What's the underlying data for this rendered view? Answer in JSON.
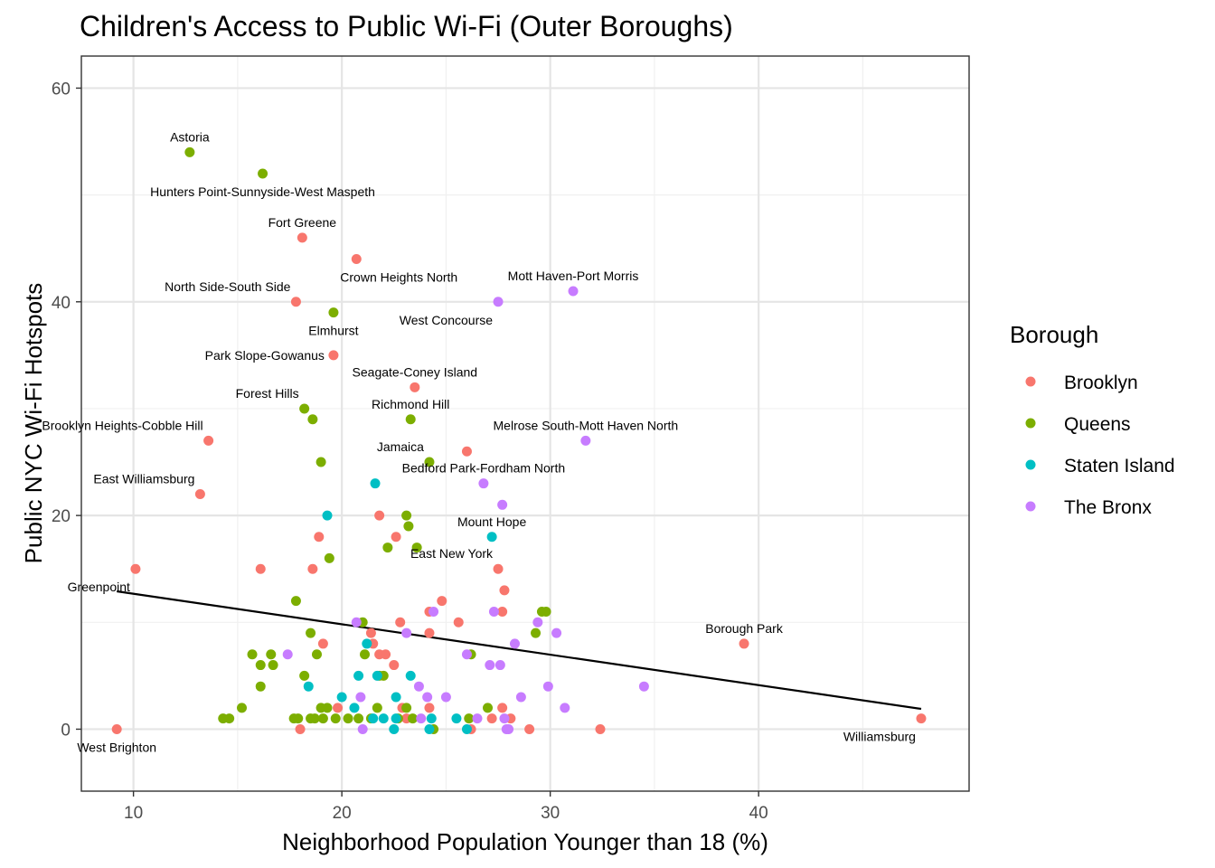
{
  "chart_data": {
    "type": "scatter",
    "title": "Children's Access to Public Wi-Fi (Outer Boroughs)",
    "xlabel": "Neighborhood Population Younger than 18 (%)",
    "ylabel": "Public NYC Wi-Fi Hotspots",
    "xlim": [
      7.5,
      50.1
    ],
    "ylim": [
      -5.8,
      63
    ],
    "x_ticks": [
      10,
      20,
      30,
      40
    ],
    "y_ticks": [
      0,
      20,
      40,
      60
    ],
    "grid": true,
    "legend": {
      "title": "Borough",
      "position": "right",
      "entries": [
        {
          "name": "Brooklyn",
          "color": "#F8766D"
        },
        {
          "name": "Queens",
          "color": "#7CAE00"
        },
        {
          "name": "Staten Island",
          "color": "#00BFC4"
        },
        {
          "name": "The Bronx",
          "color": "#C77CFF"
        }
      ]
    },
    "trend_line": {
      "x": [
        9.2,
        47.8
      ],
      "y": [
        12.9,
        1.9
      ]
    },
    "labeled_points": [
      {
        "label": "Astoria",
        "x": 12.7,
        "y": 54,
        "borough": "Queens",
        "label_pos": "above"
      },
      {
        "label": "Hunters Point-Sunnyside-West Maspeth",
        "x": 16.2,
        "y": 52,
        "borough": "Queens",
        "label_pos": "below"
      },
      {
        "label": "Fort Greene",
        "x": 18.1,
        "y": 46,
        "borough": "Brooklyn",
        "label_pos": "above"
      },
      {
        "label": "Crown Heights North",
        "x": 20.7,
        "y": 44,
        "borough": "Brooklyn",
        "label_pos": "below-right"
      },
      {
        "label": "North Side-South Side",
        "x": 17.8,
        "y": 40,
        "borough": "Brooklyn",
        "label_pos": "above-left"
      },
      {
        "label": "Elmhurst",
        "x": 19.6,
        "y": 39,
        "borough": "Queens",
        "label_pos": "below"
      },
      {
        "label": "Mott Haven-Port Morris",
        "x": 31.1,
        "y": 41,
        "borough": "The Bronx",
        "label_pos": "above"
      },
      {
        "label": "West Concourse",
        "x": 27.5,
        "y": 40,
        "borough": "The Bronx",
        "label_pos": "below-left"
      },
      {
        "label": "Park Slope-Gowanus",
        "x": 19.6,
        "y": 35,
        "borough": "Brooklyn",
        "label_pos": "left"
      },
      {
        "label": "Seagate-Coney Island",
        "x": 23.5,
        "y": 32,
        "borough": "Brooklyn",
        "label_pos": "above"
      },
      {
        "label": "Forest Hills",
        "x": 18.2,
        "y": 30,
        "borough": "Queens",
        "label_pos": "above-left"
      },
      {
        "label": "Richmond Hill",
        "x": 23.3,
        "y": 29,
        "borough": "Queens",
        "label_pos": "above"
      },
      {
        "label": "Brooklyn Heights-Cobble Hill",
        "x": 13.6,
        "y": 27,
        "borough": "Brooklyn",
        "label_pos": "above-left"
      },
      {
        "label": "Melrose South-Mott Haven North",
        "x": 31.7,
        "y": 27,
        "borough": "The Bronx",
        "label_pos": "above"
      },
      {
        "label": "Jamaica",
        "x": 24.2,
        "y": 25,
        "borough": "Queens",
        "label_pos": "above-left"
      },
      {
        "label": "Bedford Park-Fordham North",
        "x": 26.8,
        "y": 23,
        "borough": "The Bronx",
        "label_pos": "above"
      },
      {
        "label": "East Williamsburg",
        "x": 13.2,
        "y": 22,
        "borough": "Brooklyn",
        "label_pos": "above-left"
      },
      {
        "label": "Mount Hope",
        "x": 27.2,
        "y": 18,
        "borough": "Staten Island",
        "label_pos": "above"
      },
      {
        "label": "East New York",
        "x": 27.5,
        "y": 15,
        "borough": "Brooklyn",
        "label_pos": "above-left"
      },
      {
        "label": "Greenpoint",
        "x": 10.1,
        "y": 15,
        "borough": "Brooklyn",
        "label_pos": "below-left"
      },
      {
        "label": "Borough Park",
        "x": 39.3,
        "y": 8,
        "borough": "Brooklyn",
        "label_pos": "above"
      },
      {
        "label": "West Brighton",
        "x": 9.2,
        "y": 0,
        "borough": "Brooklyn",
        "label_pos": "below"
      },
      {
        "label": "Williamsburg",
        "x": 47.8,
        "y": 1,
        "borough": "Brooklyn",
        "label_pos": "below-left"
      }
    ],
    "series": [
      {
        "name": "Brooklyn",
        "color": "#F8766D",
        "points": [
          [
            26.0,
            26
          ],
          [
            21.8,
            20
          ],
          [
            18.9,
            18
          ],
          [
            22.6,
            18
          ],
          [
            16.1,
            15
          ],
          [
            18.6,
            15
          ],
          [
            27.8,
            13
          ],
          [
            24.8,
            12
          ],
          [
            22.8,
            10
          ],
          [
            25.6,
            10
          ],
          [
            24.2,
            11
          ],
          [
            27.7,
            11
          ],
          [
            21.4,
            9
          ],
          [
            24.2,
            9
          ],
          [
            19.1,
            8
          ],
          [
            21.5,
            8
          ],
          [
            21.8,
            7
          ],
          [
            22.1,
            7
          ],
          [
            22.5,
            6
          ],
          [
            19.8,
            2
          ],
          [
            22.9,
            2
          ],
          [
            24.2,
            2
          ],
          [
            27.7,
            2
          ],
          [
            23.1,
            1
          ],
          [
            27.2,
            1
          ],
          [
            28.1,
            1
          ],
          [
            18.0,
            0
          ],
          [
            26.2,
            0
          ],
          [
            29.0,
            0
          ],
          [
            32.4,
            0
          ]
        ]
      },
      {
        "name": "Queens",
        "color": "#7CAE00",
        "points": [
          [
            18.6,
            29
          ],
          [
            19.0,
            25
          ],
          [
            23.1,
            20
          ],
          [
            23.2,
            19
          ],
          [
            22.2,
            17
          ],
          [
            23.6,
            17
          ],
          [
            19.4,
            16
          ],
          [
            17.8,
            12
          ],
          [
            21.0,
            10
          ],
          [
            18.5,
            9
          ],
          [
            29.3,
            9
          ],
          [
            29.6,
            11
          ],
          [
            29.8,
            11
          ],
          [
            15.7,
            7
          ],
          [
            16.6,
            7
          ],
          [
            18.8,
            7
          ],
          [
            21.1,
            7
          ],
          [
            26.2,
            7
          ],
          [
            16.1,
            6
          ],
          [
            16.7,
            6
          ],
          [
            18.2,
            5
          ],
          [
            21.8,
            5
          ],
          [
            22.0,
            5
          ],
          [
            16.1,
            4
          ],
          [
            15.2,
            2
          ],
          [
            19.0,
            2
          ],
          [
            19.3,
            2
          ],
          [
            21.7,
            2
          ],
          [
            23.1,
            2
          ],
          [
            27.0,
            2
          ],
          [
            14.3,
            1
          ],
          [
            14.6,
            1
          ],
          [
            17.7,
            1
          ],
          [
            17.9,
            1
          ],
          [
            18.5,
            1
          ],
          [
            18.7,
            1
          ],
          [
            19.1,
            1
          ],
          [
            19.7,
            1
          ],
          [
            20.3,
            1
          ],
          [
            20.8,
            1
          ],
          [
            21.4,
            1
          ],
          [
            22.7,
            1
          ],
          [
            23.4,
            1
          ],
          [
            26.1,
            1
          ],
          [
            24.4,
            0
          ]
        ]
      },
      {
        "name": "Staten Island",
        "color": "#00BFC4",
        "points": [
          [
            21.6,
            23
          ],
          [
            19.3,
            20
          ],
          [
            21.2,
            8
          ],
          [
            20.8,
            5
          ],
          [
            21.7,
            5
          ],
          [
            23.3,
            5
          ],
          [
            18.4,
            4
          ],
          [
            20.0,
            3
          ],
          [
            22.6,
            3
          ],
          [
            20.6,
            2
          ],
          [
            21.5,
            1
          ],
          [
            22.0,
            1
          ],
          [
            22.6,
            1
          ],
          [
            24.3,
            1
          ],
          [
            25.5,
            1
          ],
          [
            22.5,
            0
          ],
          [
            24.2,
            0
          ],
          [
            26.0,
            0
          ]
        ]
      },
      {
        "name": "The Bronx",
        "color": "#C77CFF",
        "points": [
          [
            27.7,
            21
          ],
          [
            20.7,
            10
          ],
          [
            24.4,
            11
          ],
          [
            27.3,
            11
          ],
          [
            29.4,
            10
          ],
          [
            23.1,
            9
          ],
          [
            30.3,
            9
          ],
          [
            28.3,
            8
          ],
          [
            17.4,
            7
          ],
          [
            26.0,
            7
          ],
          [
            27.1,
            6
          ],
          [
            27.6,
            6
          ],
          [
            23.7,
            4
          ],
          [
            29.9,
            4
          ],
          [
            34.5,
            4
          ],
          [
            20.9,
            3
          ],
          [
            24.1,
            3
          ],
          [
            25.0,
            3
          ],
          [
            28.6,
            3
          ],
          [
            30.7,
            2
          ],
          [
            23.8,
            1
          ],
          [
            26.5,
            1
          ],
          [
            27.8,
            1
          ],
          [
            21.0,
            0
          ],
          [
            27.9,
            0
          ],
          [
            28.0,
            0
          ]
        ]
      }
    ]
  }
}
